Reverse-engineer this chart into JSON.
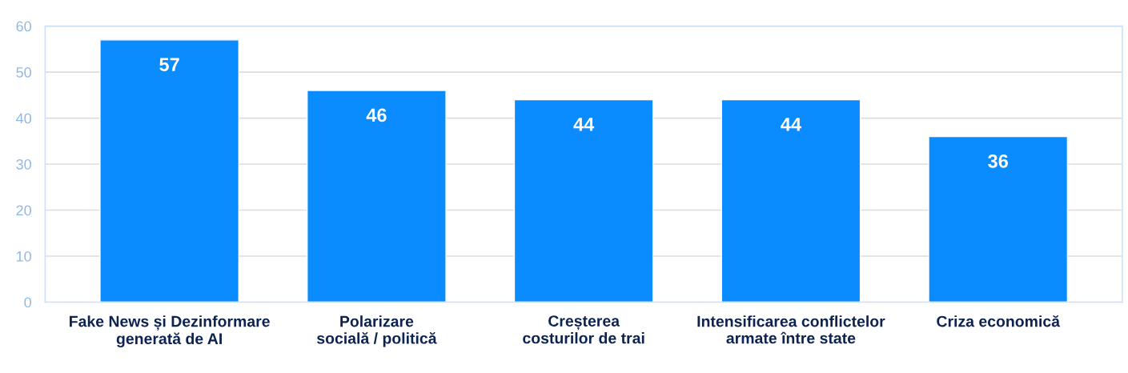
{
  "chart_data": {
    "type": "bar",
    "categories": [
      "Fake News și Dezinformare\ngenerată de AI",
      "Polarizare\nsocială / politică",
      "Creșterea\ncosturilor de trai",
      "Intensificarea conflictelor\narmate între state",
      "Criza economică"
    ],
    "values": [
      57,
      46,
      44,
      44,
      36
    ],
    "color": "#0a8cff",
    "ylim": [
      0,
      60
    ],
    "yticks": [
      0,
      10,
      20,
      30,
      40,
      50,
      60
    ],
    "grid": "y",
    "data_labels": true
  }
}
